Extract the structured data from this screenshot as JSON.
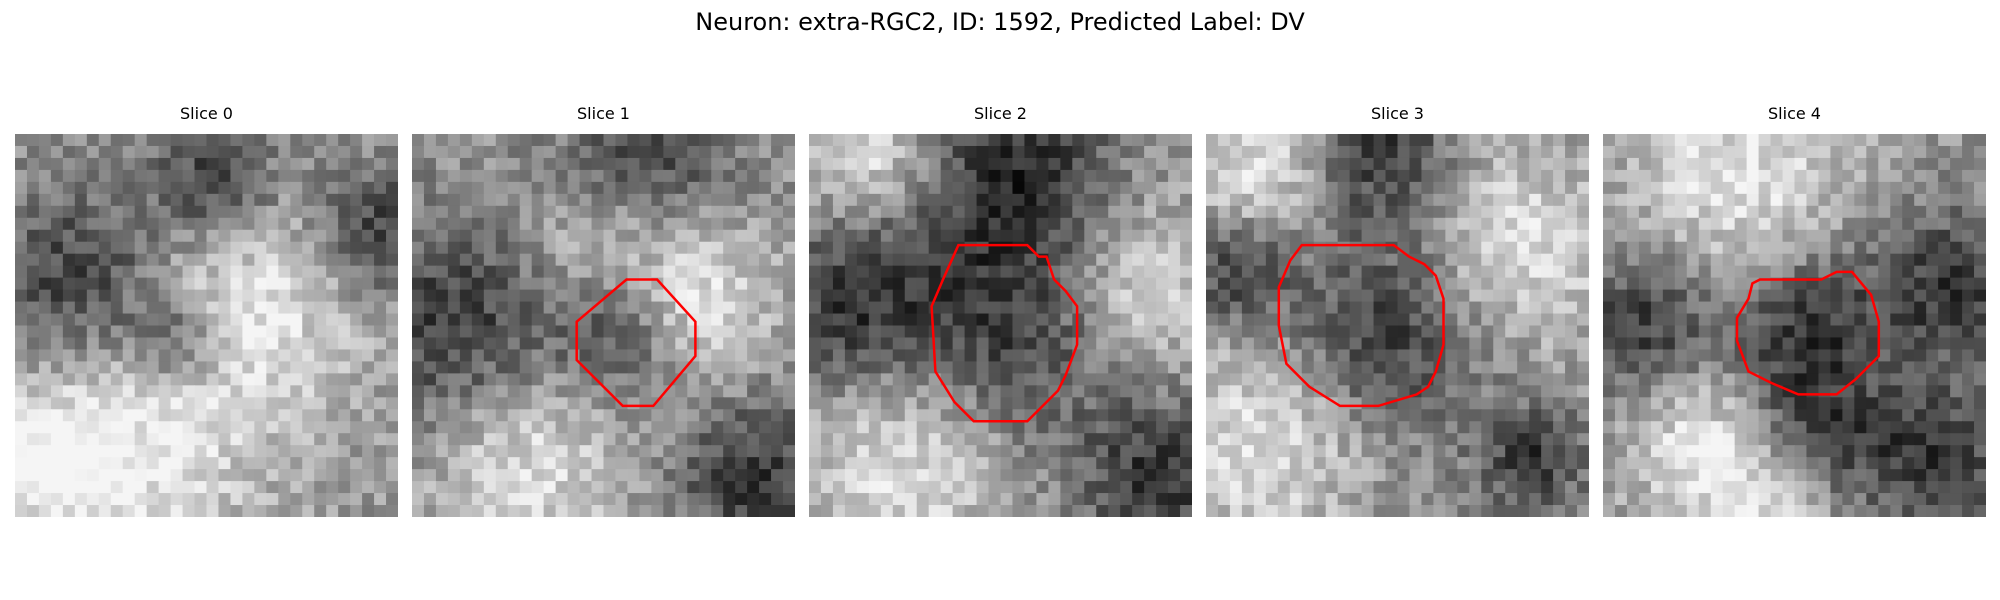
{
  "figure": {
    "title": "Neuron: extra-RGC2, ID: 1592, Predicted Label: DV"
  },
  "panels": [
    {
      "title": "Slice 0",
      "has_contour": false,
      "seed": 11,
      "dark_blobs": [
        [
          0.18,
          0.38,
          0.17
        ],
        [
          0.52,
          0.12,
          0.12
        ],
        [
          0.95,
          0.25,
          0.12
        ],
        [
          0.42,
          0.55,
          0.08
        ]
      ],
      "light_blobs": [
        [
          0.6,
          0.45,
          0.22
        ],
        [
          0.3,
          0.85,
          0.22
        ],
        [
          0.08,
          0.85,
          0.12
        ]
      ]
    },
    {
      "title": "Slice 1",
      "has_contour": true,
      "seed": 27,
      "dark_blobs": [
        [
          0.55,
          0.5,
          0.13
        ],
        [
          0.12,
          0.5,
          0.2
        ],
        [
          0.6,
          0.08,
          0.16
        ],
        [
          0.9,
          0.9,
          0.15
        ]
      ],
      "light_blobs": [
        [
          0.52,
          0.3,
          0.16
        ],
        [
          0.75,
          0.45,
          0.14
        ],
        [
          0.3,
          0.85,
          0.18
        ]
      ]
    },
    {
      "title": "Slice 2",
      "has_contour": true,
      "seed": 43,
      "dark_blobs": [
        [
          0.53,
          0.5,
          0.22
        ],
        [
          0.55,
          0.08,
          0.18
        ],
        [
          0.1,
          0.45,
          0.16
        ],
        [
          0.92,
          0.9,
          0.15
        ]
      ],
      "light_blobs": [
        [
          0.85,
          0.4,
          0.16
        ],
        [
          0.25,
          0.85,
          0.2
        ],
        [
          0.15,
          0.05,
          0.12
        ]
      ]
    },
    {
      "title": "Slice 3",
      "has_contour": true,
      "seed": 59,
      "dark_blobs": [
        [
          0.48,
          0.52,
          0.18
        ],
        [
          0.45,
          0.05,
          0.14
        ],
        [
          0.85,
          0.85,
          0.1
        ],
        [
          0.08,
          0.35,
          0.1
        ]
      ],
      "light_blobs": [
        [
          0.8,
          0.3,
          0.18
        ],
        [
          0.15,
          0.8,
          0.18
        ],
        [
          0.15,
          0.1,
          0.14
        ]
      ]
    },
    {
      "title": "Slice 4",
      "has_contour": true,
      "seed": 71,
      "dark_blobs": [
        [
          0.53,
          0.5,
          0.14
        ],
        [
          0.1,
          0.5,
          0.14
        ],
        [
          0.9,
          0.4,
          0.14
        ],
        [
          0.88,
          0.85,
          0.14
        ],
        [
          0.55,
          0.8,
          0.14
        ]
      ],
      "light_blobs": [
        [
          0.35,
          0.12,
          0.2
        ],
        [
          0.45,
          0.95,
          0.14
        ],
        [
          0.25,
          0.8,
          0.14
        ]
      ]
    }
  ],
  "contours": {
    "Slice 1": [
      [
        0.56,
        0.38
      ],
      [
        0.64,
        0.38
      ],
      [
        0.74,
        0.49
      ],
      [
        0.74,
        0.58
      ],
      [
        0.63,
        0.71
      ],
      [
        0.55,
        0.71
      ],
      [
        0.43,
        0.59
      ],
      [
        0.43,
        0.49
      ]
    ],
    "Slice 2": [
      [
        0.39,
        0.29
      ],
      [
        0.57,
        0.29
      ],
      [
        0.6,
        0.32
      ],
      [
        0.62,
        0.32
      ],
      [
        0.64,
        0.38
      ],
      [
        0.67,
        0.41
      ],
      [
        0.7,
        0.45
      ],
      [
        0.7,
        0.55
      ],
      [
        0.67,
        0.63
      ],
      [
        0.65,
        0.67
      ],
      [
        0.62,
        0.7
      ],
      [
        0.57,
        0.75
      ],
      [
        0.43,
        0.75
      ],
      [
        0.38,
        0.7
      ],
      [
        0.33,
        0.62
      ],
      [
        0.32,
        0.45
      ],
      [
        0.35,
        0.38
      ]
    ],
    "Slice 3": [
      [
        0.25,
        0.29
      ],
      [
        0.49,
        0.29
      ],
      [
        0.53,
        0.32
      ],
      [
        0.57,
        0.34
      ],
      [
        0.6,
        0.37
      ],
      [
        0.62,
        0.43
      ],
      [
        0.62,
        0.55
      ],
      [
        0.6,
        0.62
      ],
      [
        0.58,
        0.66
      ],
      [
        0.55,
        0.68
      ],
      [
        0.45,
        0.71
      ],
      [
        0.35,
        0.71
      ],
      [
        0.27,
        0.66
      ],
      [
        0.21,
        0.6
      ],
      [
        0.19,
        0.5
      ],
      [
        0.19,
        0.4
      ],
      [
        0.22,
        0.33
      ]
    ],
    "Slice 4": [
      [
        0.41,
        0.38
      ],
      [
        0.57,
        0.38
      ],
      [
        0.61,
        0.36
      ],
      [
        0.65,
        0.36
      ],
      [
        0.7,
        0.42
      ],
      [
        0.72,
        0.49
      ],
      [
        0.72,
        0.58
      ],
      [
        0.66,
        0.64
      ],
      [
        0.61,
        0.68
      ],
      [
        0.51,
        0.68
      ],
      [
        0.44,
        0.65
      ],
      [
        0.38,
        0.62
      ],
      [
        0.35,
        0.54
      ],
      [
        0.35,
        0.48
      ],
      [
        0.38,
        0.43
      ],
      [
        0.39,
        0.39
      ]
    ]
  },
  "style": {
    "contour_color": "#ff0000",
    "colormap": "gray"
  }
}
